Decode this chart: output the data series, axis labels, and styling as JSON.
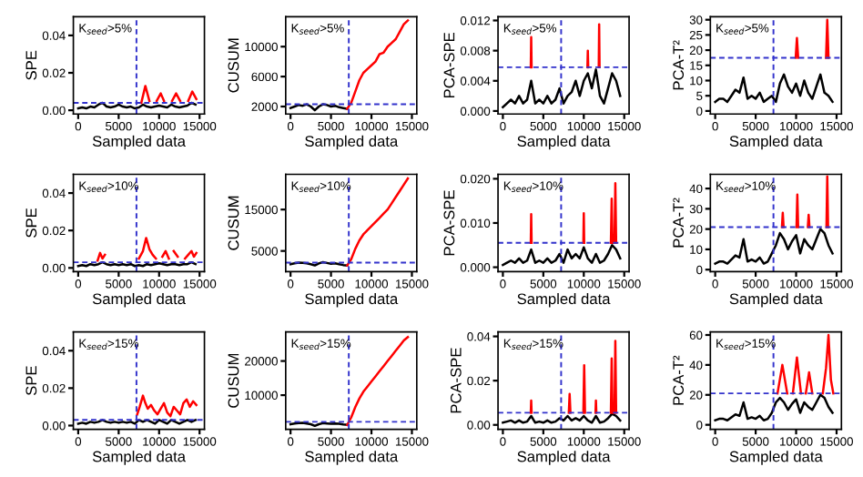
{
  "chart_data": [
    {
      "type": "line",
      "ylabel": "SPE",
      "xlabel": "Sampled data",
      "annotations": [
        "K$_{seed}$>5%"
      ],
      "x": [
        0,
        500,
        1000,
        1500,
        2000,
        2500,
        3000,
        3500,
        4000,
        4500,
        5000,
        5500,
        6000,
        6500,
        7000,
        7500,
        8000,
        8500,
        9000,
        9500,
        10000,
        10500,
        11000,
        11500,
        12000,
        12500,
        13000,
        13500,
        14000,
        14500
      ],
      "xlim": [
        -600,
        15600
      ],
      "xticks": [
        0,
        5000,
        10000,
        15000
      ],
      "ylim": [
        -0.002,
        0.05
      ],
      "yticks": [
        {
          "value": 0,
          "label": "0.00"
        },
        {
          "value": 0.02,
          "label": "0.02"
        },
        {
          "value": 0.04,
          "label": "0.04"
        }
      ],
      "series": [
        {
          "color": "#000000",
          "values": [
            0.001,
            0.0015,
            0.001,
            0.002,
            0.0015,
            0.003,
            0.004,
            0.002,
            0.0015,
            0.002,
            0.003,
            0.002,
            0.0015,
            0.002,
            0.001,
            0.0015,
            0.003,
            0.002,
            0.0015,
            0.002,
            0.0025,
            0.002,
            0.0015,
            0.003,
            0.002,
            0.0015,
            0.002,
            0.0025,
            0.004,
            0.003
          ]
        },
        {
          "color": "#ff0000",
          "x": [
            7800,
            8300,
            8800,
            9300,
            9700,
            10200,
            10600,
            11100,
            11600,
            12100,
            12600,
            13000,
            13600,
            14100,
            14600
          ],
          "values": [
            0.004,
            0.013,
            0.005,
            null,
            0.005,
            0.009,
            0.005,
            null,
            0.005,
            0.009,
            0.005,
            null,
            0.005,
            0.01,
            0.006
          ]
        }
      ],
      "ref_lines": [
        {
          "axis": "x",
          "value": 7200,
          "color": "#3333cc",
          "line_style": "dashed"
        },
        {
          "axis": "y",
          "value": 0.004,
          "color": "#3333cc",
          "line_style": "dashed"
        }
      ]
    },
    {
      "type": "line",
      "ylabel": "CUSUM",
      "xlabel": "Sampled data",
      "annotations": [
        "K$_{seed}$>5%"
      ],
      "x": [
        0,
        500,
        1000,
        1500,
        2000,
        2500,
        3000,
        3500,
        4000,
        4500,
        5000,
        5500,
        6000,
        6500,
        7000,
        7500,
        8000,
        8500,
        9000,
        9500,
        10000,
        10500,
        11000,
        11500,
        12000,
        12500,
        13000,
        13500,
        14000,
        14500
      ],
      "xlim": [
        -600,
        15600
      ],
      "xticks": [
        0,
        5000,
        10000,
        15000
      ],
      "ylim": [
        1000,
        14000
      ],
      "yticks": [
        2000,
        6000,
        10000
      ],
      "series": [
        {
          "color": "#000000",
          "values": [
            1800,
            2000,
            2200,
            2100,
            2300,
            2000,
            1500,
            2000,
            2300,
            2200,
            2000,
            2100,
            1900,
            1800,
            1700,
            null,
            null,
            null,
            null,
            null,
            null,
            null,
            null,
            null,
            null,
            null,
            null,
            null,
            null,
            null
          ]
        },
        {
          "color": "#ff0000",
          "values": [
            null,
            null,
            null,
            null,
            null,
            null,
            null,
            null,
            null,
            null,
            null,
            null,
            null,
            null,
            1700,
            2500,
            4000,
            5500,
            6500,
            7000,
            7500,
            8000,
            9000,
            9200,
            10000,
            10500,
            11000,
            12000,
            13000,
            13500
          ]
        }
      ],
      "ref_lines": [
        {
          "axis": "x",
          "value": 7200,
          "color": "#3333cc",
          "line_style": "dashed"
        },
        {
          "axis": "y",
          "value": 2300,
          "color": "#3333cc",
          "line_style": "dashed"
        }
      ]
    },
    {
      "type": "line",
      "ylabel": "PCA-SPE",
      "xlabel": "Sampled data",
      "annotations": [
        "K$_{seed}$>5%"
      ],
      "x": [
        0,
        500,
        1000,
        1500,
        2000,
        2500,
        3000,
        3500,
        4000,
        4500,
        5000,
        5500,
        6000,
        6500,
        7000,
        7500,
        8000,
        8500,
        9000,
        9500,
        10000,
        10500,
        11000,
        11500,
        12000,
        12500,
        13000,
        13500,
        14000,
        14500
      ],
      "xlim": [
        -600,
        15600
      ],
      "xticks": [
        0,
        5000,
        10000,
        15000
      ],
      "ylim": [
        -0.0004,
        0.0125
      ],
      "yticks": [
        {
          "value": 0,
          "label": "0.000"
        },
        {
          "value": 0.004,
          "label": "0.004"
        },
        {
          "value": 0.008,
          "label": "0.008"
        },
        {
          "value": 0.012,
          "label": "0.012"
        }
      ],
      "series": [
        {
          "color": "#000000",
          "values": [
            0.0005,
            0.001,
            0.0015,
            0.001,
            0.002,
            0.001,
            0.0015,
            0.004,
            0.001,
            0.0015,
            0.001,
            0.002,
            0.001,
            0.0015,
            0.003,
            0.001,
            0.002,
            0.0025,
            0.004,
            0.002,
            0.004,
            0.005,
            0.003,
            0.0055,
            0.002,
            0.001,
            0.003,
            0.005,
            0.004,
            0.002
          ]
        },
        {
          "color": "#ff0000",
          "x": [
            3450,
            3500,
            3550,
            3600,
            10450,
            10500,
            10550,
            10600,
            11850,
            11900,
            11950
          ],
          "values": [
            0.0058,
            0.0098,
            0.0058,
            null,
            0.0058,
            0.008,
            0.0058,
            null,
            0.0058,
            0.0115,
            0.0058
          ]
        }
      ],
      "ref_lines": [
        {
          "axis": "x",
          "value": 7200,
          "color": "#3333cc",
          "line_style": "dashed"
        },
        {
          "axis": "y",
          "value": 0.0058,
          "color": "#3333cc",
          "line_style": "dashed"
        }
      ]
    },
    {
      "type": "line",
      "ylabel": "PCA-T²",
      "xlabel": "Sampled data",
      "annotations": [
        "K$_{seed}$>5%"
      ],
      "x": [
        0,
        500,
        1000,
        1500,
        2000,
        2500,
        3000,
        3500,
        4000,
        4500,
        5000,
        5500,
        6000,
        6500,
        7000,
        7500,
        8000,
        8500,
        9000,
        9500,
        10000,
        10500,
        11000,
        11500,
        12000,
        12500,
        13000,
        13500,
        14000,
        14500
      ],
      "xlim": [
        -600,
        15600
      ],
      "xticks": [
        0,
        5000,
        10000,
        15000
      ],
      "ylim": [
        -1,
        31
      ],
      "yticks": [
        0,
        5,
        10,
        15,
        20,
        25,
        30
      ],
      "series": [
        {
          "color": "#000000",
          "values": [
            3,
            4,
            4,
            3,
            5,
            7,
            6,
            11,
            4,
            5,
            4,
            6,
            3,
            4,
            5,
            3,
            9,
            12,
            8,
            6,
            9,
            5,
            10,
            6,
            4,
            8,
            12,
            6,
            5,
            3
          ]
        },
        {
          "color": "#ff0000",
          "x": [
            9950,
            10100,
            10250,
            10400,
            13700,
            13850,
            14000
          ],
          "values": [
            17.5,
            24,
            17.5,
            null,
            17.5,
            30,
            17.5
          ]
        }
      ],
      "ref_lines": [
        {
          "axis": "x",
          "value": 7200,
          "color": "#3333cc",
          "line_style": "dashed"
        },
        {
          "axis": "y",
          "value": 17.5,
          "color": "#3333cc",
          "line_style": "dashed"
        }
      ]
    },
    {
      "type": "line",
      "ylabel": "SPE",
      "xlabel": "Sampled data",
      "annotations": [
        "K$_{seed}$>10%"
      ],
      "x": [
        0,
        500,
        1000,
        1500,
        2000,
        2500,
        3000,
        3500,
        4000,
        4500,
        5000,
        5500,
        6000,
        6500,
        7000,
        7500,
        8000,
        8500,
        9000,
        9500,
        10000,
        10500,
        11000,
        11500,
        12000,
        12500,
        13000,
        13500,
        14000,
        14500
      ],
      "xlim": [
        -600,
        15600
      ],
      "xticks": [
        0,
        5000,
        10000,
        15000
      ],
      "ylim": [
        -0.002,
        0.05
      ],
      "yticks": [
        {
          "value": 0,
          "label": "0.00"
        },
        {
          "value": 0.02,
          "label": "0.02"
        },
        {
          "value": 0.04,
          "label": "0.04"
        }
      ],
      "series": [
        {
          "color": "#000000",
          "values": [
            0.001,
            0.0015,
            0.001,
            0.002,
            0.0015,
            0.002,
            0.003,
            0.002,
            0.0015,
            0.002,
            0.0015,
            0.002,
            0.0015,
            0.002,
            0.001,
            0.0015,
            0.001,
            0.002,
            0.0015,
            0.002,
            0.0025,
            0.002,
            0.0015,
            0.002,
            0.002,
            0.0015,
            0.002,
            0.002,
            0.003,
            0.002
          ]
        },
        {
          "color": "#ff0000",
          "x": [
            2400,
            2700,
            3000,
            3300,
            3600,
            7500,
            8000,
            8400,
            8800,
            9200,
            9600,
            10000,
            10400,
            10800,
            11200,
            11600,
            11800,
            12300,
            12800,
            13200,
            13600,
            14000,
            14300,
            14600
          ],
          "values": [
            0.004,
            0.008,
            0.005,
            0.007,
            null,
            0.005,
            0.009,
            0.016,
            0.01,
            0.007,
            0.005,
            null,
            0.006,
            0.009,
            0.005,
            null,
            0.009,
            0.006,
            null,
            0.005,
            0.007,
            0.009,
            0.006,
            0.008
          ]
        }
      ],
      "ref_lines": [
        {
          "axis": "x",
          "value": 7200,
          "color": "#3333cc",
          "line_style": "dashed"
        },
        {
          "axis": "y",
          "value": 0.003,
          "color": "#3333cc",
          "line_style": "dashed"
        }
      ]
    },
    {
      "type": "line",
      "ylabel": "CUSUM",
      "xlabel": "Sampled data",
      "annotations": [
        "K$_{seed}$>10%"
      ],
      "x": [
        0,
        500,
        1000,
        1500,
        2000,
        2500,
        3000,
        3500,
        4000,
        4500,
        5000,
        5500,
        6000,
        6500,
        7000,
        7500,
        8000,
        8500,
        9000,
        9500,
        10000,
        10500,
        11000,
        11500,
        12000,
        12500,
        13000,
        13500,
        14000,
        14500
      ],
      "xlim": [
        -600,
        15600
      ],
      "xticks": [
        0,
        5000,
        10000,
        15000
      ],
      "ylim": [
        0,
        23500
      ],
      "yticks": [
        5000,
        15000
      ],
      "series": [
        {
          "color": "#000000",
          "values": [
            1800,
            2000,
            2200,
            2100,
            2000,
            1800,
            1500,
            2000,
            2300,
            2100,
            1900,
            2000,
            1800,
            1600,
            1500,
            null,
            null,
            null,
            null,
            null,
            null,
            null,
            null,
            null,
            null,
            null,
            null,
            null,
            null,
            null
          ]
        },
        {
          "color": "#ff0000",
          "values": [
            null,
            null,
            null,
            null,
            null,
            null,
            null,
            null,
            null,
            null,
            null,
            null,
            null,
            null,
            1500,
            3000,
            5500,
            7500,
            9000,
            10000,
            11000,
            12000,
            13000,
            14000,
            15000,
            16500,
            18000,
            19500,
            21000,
            22500
          ]
        }
      ],
      "ref_lines": [
        {
          "axis": "x",
          "value": 7200,
          "color": "#3333cc",
          "line_style": "dashed"
        },
        {
          "axis": "y",
          "value": 2200,
          "color": "#3333cc",
          "line_style": "dashed"
        }
      ]
    },
    {
      "type": "line",
      "ylabel": "PCA-SPE",
      "xlabel": "Sampled data",
      "annotations": [
        "K$_{seed}$>10%"
      ],
      "x": [
        0,
        500,
        1000,
        1500,
        2000,
        2500,
        3000,
        3500,
        4000,
        4500,
        5000,
        5500,
        6000,
        6500,
        7000,
        7500,
        8000,
        8500,
        9000,
        9500,
        10000,
        10500,
        11000,
        11500,
        12000,
        12500,
        13000,
        13500,
        14000,
        14500
      ],
      "xlim": [
        -600,
        15600
      ],
      "xticks": [
        0,
        5000,
        10000,
        15000
      ],
      "ylim": [
        -0.001,
        0.021
      ],
      "yticks": [
        {
          "value": 0,
          "label": "0.000"
        },
        {
          "value": 0.01,
          "label": "0.010"
        },
        {
          "value": 0.02,
          "label": "0.020"
        }
      ],
      "series": [
        {
          "color": "#000000",
          "values": [
            0.0005,
            0.001,
            0.0015,
            0.001,
            0.002,
            0.001,
            0.0015,
            0.004,
            0.001,
            0.0015,
            0.001,
            0.002,
            0.001,
            0.0015,
            0.003,
            0.001,
            0.004,
            0.002,
            0.003,
            0.002,
            0.0045,
            0.002,
            0.001,
            0.003,
            0.001,
            0.0015,
            0.003,
            0.005,
            0.004,
            0.002
          ]
        },
        {
          "color": "#ff0000",
          "x": [
            3450,
            3500,
            3550,
            3600,
            9950,
            10000,
            10050,
            10100,
            13350,
            13450,
            13550,
            13700,
            13800,
            13900,
            14000
          ],
          "values": [
            0.0055,
            0.012,
            0.0055,
            null,
            0.0055,
            0.0122,
            0.0055,
            null,
            0.0055,
            0.0155,
            0.0055,
            null,
            0.0055,
            0.019,
            0.0055
          ]
        }
      ],
      "ref_lines": [
        {
          "axis": "x",
          "value": 7200,
          "color": "#3333cc",
          "line_style": "dashed"
        },
        {
          "axis": "y",
          "value": 0.0055,
          "color": "#3333cc",
          "line_style": "dashed"
        }
      ]
    },
    {
      "type": "line",
      "ylabel": "PCA-T²",
      "xlabel": "Sampled data",
      "annotations": [
        "K$_{seed}$>10%"
      ],
      "x": [
        0,
        500,
        1000,
        1500,
        2000,
        2500,
        3000,
        3500,
        4000,
        4500,
        5000,
        5500,
        6000,
        6500,
        7000,
        7500,
        8000,
        8500,
        9000,
        9500,
        10000,
        10500,
        11000,
        11500,
        12000,
        12500,
        13000,
        13500,
        14000,
        14500
      ],
      "xlim": [
        -600,
        15600
      ],
      "xticks": [
        0,
        5000,
        10000,
        15000
      ],
      "ylim": [
        -1,
        47
      ],
      "yticks": [
        0,
        10,
        20,
        30,
        40
      ],
      "series": [
        {
          "color": "#000000",
          "values": [
            3,
            4,
            4,
            3,
            5,
            7,
            6,
            15,
            4,
            5,
            4,
            6,
            3,
            4,
            8,
            12,
            18,
            15,
            10,
            14,
            17,
            8,
            15,
            12,
            10,
            15,
            20,
            18,
            12,
            8
          ]
        },
        {
          "color": "#ff0000",
          "x": [
            8250,
            8350,
            8450,
            8550,
            10050,
            10150,
            10250,
            10350,
            11450,
            11550,
            11650,
            11750,
            13750,
            13850,
            13950
          ],
          "values": [
            21,
            28,
            21,
            null,
            21,
            37,
            21,
            null,
            21,
            27,
            21,
            null,
            21,
            46,
            21
          ]
        }
      ],
      "ref_lines": [
        {
          "axis": "x",
          "value": 7200,
          "color": "#3333cc",
          "line_style": "dashed"
        },
        {
          "axis": "y",
          "value": 21,
          "color": "#3333cc",
          "line_style": "dashed"
        }
      ]
    },
    {
      "type": "line",
      "ylabel": "SPE",
      "xlabel": "Sampled data",
      "annotations": [
        "K$_{seed}$>15%"
      ],
      "x": [
        0,
        500,
        1000,
        1500,
        2000,
        2500,
        3000,
        3500,
        4000,
        4500,
        5000,
        5500,
        6000,
        6500,
        7000,
        7500,
        8000,
        8500,
        9000,
        9500,
        10000,
        10500,
        11000,
        11500,
        12000,
        12500,
        13000,
        13500,
        14000,
        14500
      ],
      "xlim": [
        -600,
        15600
      ],
      "xticks": [
        0,
        5000,
        10000,
        15000
      ],
      "ylim": [
        -0.002,
        0.05
      ],
      "yticks": [
        {
          "value": 0,
          "label": "0.00"
        },
        {
          "value": 0.02,
          "label": "0.02"
        },
        {
          "value": 0.04,
          "label": "0.04"
        }
      ],
      "series": [
        {
          "color": "#000000",
          "values": [
            0.001,
            0.0015,
            0.001,
            0.002,
            0.0015,
            0.002,
            0.003,
            0.002,
            0.0015,
            0.002,
            0.0015,
            0.002,
            0.0015,
            0.002,
            0.001,
            0.003,
            0.002,
            0.003,
            0.002,
            0.001,
            0.003,
            0.002,
            0.001,
            0.003,
            0.002,
            0.001,
            0.002,
            0.003,
            0.002,
            0.003
          ]
        },
        {
          "color": "#ff0000",
          "x": [
            7300,
            7600,
            8000,
            8300,
            8600,
            9000,
            9400,
            9800,
            10200,
            10600,
            11000,
            11400,
            11800,
            12200,
            12600,
            13000,
            13400,
            13800,
            14200,
            14600
          ],
          "values": [
            0.006,
            0.01,
            0.016,
            0.012,
            0.009,
            0.011,
            0.008,
            0.006,
            0.009,
            0.012,
            0.007,
            0.005,
            0.01,
            0.008,
            0.006,
            0.012,
            0.014,
            0.01,
            0.013,
            0.011
          ]
        }
      ],
      "ref_lines": [
        {
          "axis": "x",
          "value": 7200,
          "color": "#3333cc",
          "line_style": "dashed"
        },
        {
          "axis": "y",
          "value": 0.003,
          "color": "#3333cc",
          "line_style": "dashed"
        }
      ]
    },
    {
      "type": "line",
      "ylabel": "CUSUM",
      "xlabel": "Sampled data",
      "annotations": [
        "K$_{seed}$>15%"
      ],
      "x": [
        0,
        500,
        1000,
        1500,
        2000,
        2500,
        3000,
        3500,
        4000,
        4500,
        5000,
        5500,
        6000,
        6500,
        7000,
        7500,
        8000,
        8500,
        9000,
        9500,
        10000,
        10500,
        11000,
        11500,
        12000,
        12500,
        13000,
        13500,
        14000,
        14500
      ],
      "xlim": [
        -600,
        15600
      ],
      "xticks": [
        0,
        5000,
        10000,
        15000
      ],
      "ylim": [
        0,
        28500
      ],
      "yticks": [
        10000,
        20000
      ],
      "series": [
        {
          "color": "#000000",
          "values": [
            1500,
            1700,
            1800,
            1900,
            1700,
            1500,
            1000,
            1500,
            1800,
            1700,
            1600,
            1700,
            1600,
            1400,
            1300,
            null,
            null,
            null,
            null,
            null,
            null,
            null,
            null,
            null,
            null,
            null,
            null,
            null,
            null,
            null
          ]
        },
        {
          "color": "#ff0000",
          "values": [
            null,
            null,
            null,
            null,
            null,
            null,
            null,
            null,
            null,
            null,
            null,
            null,
            null,
            null,
            1300,
            3500,
            6500,
            9000,
            11000,
            12500,
            14000,
            15500,
            17000,
            18500,
            20000,
            21500,
            23000,
            24500,
            26000,
            27000
          ]
        }
      ],
      "ref_lines": [
        {
          "axis": "x",
          "value": 7200,
          "color": "#3333cc",
          "line_style": "dashed"
        },
        {
          "axis": "y",
          "value": 2200,
          "color": "#3333cc",
          "line_style": "dashed"
        }
      ]
    },
    {
      "type": "line",
      "ylabel": "PCA-SPE",
      "xlabel": "Sampled data",
      "annotations": [
        "K$_{seed}$>15%"
      ],
      "x": [
        0,
        500,
        1000,
        1500,
        2000,
        2500,
        3000,
        3500,
        4000,
        4500,
        5000,
        5500,
        6000,
        6500,
        7000,
        7500,
        8000,
        8500,
        9000,
        9500,
        10000,
        10500,
        11000,
        11500,
        12000,
        12500,
        13000,
        13500,
        14000,
        14500
      ],
      "xlim": [
        -600,
        15600
      ],
      "xticks": [
        0,
        5000,
        10000,
        15000
      ],
      "ylim": [
        -0.002,
        0.042
      ],
      "yticks": [
        {
          "value": 0,
          "label": "0.00"
        },
        {
          "value": 0.02,
          "label": "0.02"
        },
        {
          "value": 0.04,
          "label": "0.04"
        }
      ],
      "series": [
        {
          "color": "#000000",
          "values": [
            0.001,
            0.0015,
            0.002,
            0.001,
            0.002,
            0.001,
            0.0015,
            0.004,
            0.001,
            0.0015,
            0.001,
            0.002,
            0.001,
            0.0015,
            0.003,
            0.002,
            0.004,
            0.002,
            0.003,
            0.002,
            0.004,
            0.002,
            0.001,
            0.004,
            0.001,
            0.0015,
            0.003,
            0.005,
            0.004,
            0.002
          ]
        },
        {
          "color": "#ff0000",
          "x": [
            3450,
            3500,
            3550,
            3600,
            8150,
            8250,
            8350,
            8450,
            9950,
            10050,
            10150,
            10250,
            11450,
            11500,
            11550,
            11600,
            13350,
            13450,
            13550,
            13700,
            13800,
            13900,
            14000
          ],
          "values": [
            0.0055,
            0.011,
            0.0055,
            null,
            0.0055,
            0.014,
            0.0055,
            null,
            0.0055,
            0.027,
            0.0055,
            null,
            0.0055,
            0.011,
            0.0055,
            null,
            0.0055,
            0.03,
            0.0055,
            null,
            0.0055,
            0.038,
            0.0055
          ]
        }
      ],
      "ref_lines": [
        {
          "axis": "x",
          "value": 7200,
          "color": "#3333cc",
          "line_style": "dashed"
        },
        {
          "axis": "y",
          "value": 0.0055,
          "color": "#3333cc",
          "line_style": "dashed"
        }
      ]
    },
    {
      "type": "line",
      "ylabel": "PCA-T²",
      "xlabel": "Sampled data",
      "annotations": [
        "K$_{seed}$>15%"
      ],
      "x": [
        0,
        500,
        1000,
        1500,
        2000,
        2500,
        3000,
        3500,
        4000,
        4500,
        5000,
        5500,
        6000,
        6500,
        7000,
        7500,
        8000,
        8500,
        9000,
        9500,
        10000,
        10500,
        11000,
        11500,
        12000,
        12500,
        13000,
        13500,
        14000,
        14500
      ],
      "xlim": [
        -600,
        15600
      ],
      "xticks": [
        0,
        5000,
        10000,
        15000
      ],
      "ylim": [
        -3,
        62
      ],
      "yticks": [
        0,
        20,
        40,
        60
      ],
      "series": [
        {
          "color": "#000000",
          "values": [
            3,
            4,
            4,
            3,
            5,
            7,
            6,
            15,
            4,
            5,
            4,
            6,
            3,
            4,
            8,
            15,
            18,
            15,
            10,
            14,
            17,
            8,
            15,
            12,
            10,
            15,
            20,
            18,
            12,
            8
          ]
        },
        {
          "color": "#ff0000",
          "x": [
            7700,
            8300,
            8900,
            9300,
            9600,
            10100,
            10600,
            11000,
            11200,
            11600,
            12000,
            13000,
            13300,
            13700,
            14000,
            14300,
            14600
          ],
          "values": [
            21,
            40,
            21,
            null,
            21,
            45,
            21,
            null,
            21,
            35,
            21,
            null,
            21,
            38,
            60,
            30,
            21
          ]
        }
      ],
      "ref_lines": [
        {
          "axis": "x",
          "value": 7200,
          "color": "#3333cc",
          "line_style": "dashed"
        },
        {
          "axis": "y",
          "value": 21,
          "color": "#3333cc",
          "line_style": "dashed"
        }
      ]
    }
  ]
}
